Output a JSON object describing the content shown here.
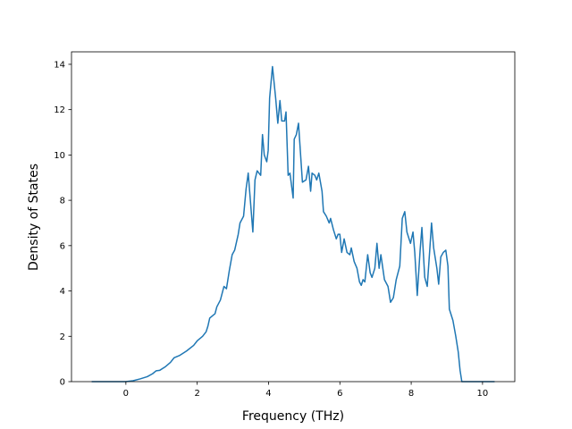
{
  "chart_data": {
    "type": "line",
    "x_label": "Frequency (THz)",
    "y_label": "Density of States",
    "xlim": [
      -1.525,
      10.905
    ],
    "ylim": [
      0,
      14.55
    ],
    "xticks": [
      0,
      2,
      4,
      6,
      8,
      10
    ],
    "yticks": [
      0,
      2,
      4,
      6,
      8,
      10,
      12,
      14
    ],
    "series": [
      {
        "name": "DOS",
        "color": "#1f77b4",
        "x": [
          -0.96,
          -0.5,
          0,
          0.2,
          0.4,
          0.6,
          0.75,
          0.85,
          0.95,
          1.1,
          1.25,
          1.35,
          1.5,
          1.7,
          1.9,
          2.0,
          2.15,
          2.25,
          2.3,
          2.35,
          2.5,
          2.55,
          2.65,
          2.75,
          2.82,
          2.9,
          2.98,
          3.05,
          3.15,
          3.2,
          3.3,
          3.37,
          3.43,
          3.49,
          3.56,
          3.62,
          3.68,
          3.78,
          3.83,
          3.88,
          3.95,
          3.99,
          4.03,
          4.11,
          4.2,
          4.26,
          4.32,
          4.37,
          4.45,
          4.49,
          4.55,
          4.6,
          4.69,
          4.72,
          4.78,
          4.84,
          4.95,
          5.05,
          5.12,
          5.18,
          5.22,
          5.3,
          5.35,
          5.41,
          5.5,
          5.54,
          5.62,
          5.7,
          5.74,
          5.82,
          5.9,
          5.95,
          6.0,
          6.05,
          6.12,
          6.2,
          6.28,
          6.32,
          6.4,
          6.48,
          6.55,
          6.6,
          6.65,
          6.7,
          6.78,
          6.85,
          6.9,
          6.98,
          7.04,
          7.1,
          7.15,
          7.25,
          7.35,
          7.42,
          7.5,
          7.58,
          7.68,
          7.75,
          7.82,
          7.88,
          7.98,
          8.05,
          8.1,
          8.17,
          8.25,
          8.3,
          8.38,
          8.45,
          8.52,
          8.57,
          8.63,
          8.72,
          8.77,
          8.83,
          8.9,
          8.97,
          9.03,
          9.07,
          9.17,
          9.25,
          9.32,
          9.37,
          9.42,
          10.34
        ],
        "values": [
          0,
          0,
          0,
          0.04,
          0.12,
          0.22,
          0.35,
          0.48,
          0.5,
          0.65,
          0.85,
          1.05,
          1.15,
          1.35,
          1.6,
          1.8,
          2.0,
          2.2,
          2.45,
          2.8,
          3.0,
          3.3,
          3.6,
          4.2,
          4.1,
          4.9,
          5.6,
          5.8,
          6.5,
          7.0,
          7.3,
          8.5,
          9.2,
          8.0,
          6.6,
          8.9,
          9.3,
          9.1,
          10.9,
          10.0,
          9.7,
          10.2,
          12.5,
          13.9,
          12.5,
          11.4,
          12.4,
          11.5,
          11.5,
          11.9,
          9.1,
          9.2,
          8.1,
          10.7,
          10.9,
          11.4,
          8.8,
          8.9,
          9.5,
          8.4,
          9.2,
          9.1,
          8.9,
          9.2,
          8.4,
          7.5,
          7.3,
          7.0,
          7.2,
          6.7,
          6.3,
          6.5,
          6.5,
          5.7,
          6.3,
          5.7,
          5.6,
          5.9,
          5.3,
          5.0,
          4.4,
          4.25,
          4.5,
          4.4,
          5.6,
          4.8,
          4.6,
          5.0,
          6.1,
          5.0,
          5.6,
          4.5,
          4.2,
          3.5,
          3.7,
          4.5,
          5.1,
          7.2,
          7.5,
          6.6,
          6.1,
          6.6,
          5.7,
          3.8,
          5.8,
          6.8,
          4.6,
          4.2,
          5.8,
          7.0,
          5.9,
          5.0,
          4.3,
          5.5,
          5.7,
          5.8,
          5.1,
          3.2,
          2.7,
          2.0,
          1.3,
          0.5,
          0,
          0
        ]
      }
    ]
  }
}
